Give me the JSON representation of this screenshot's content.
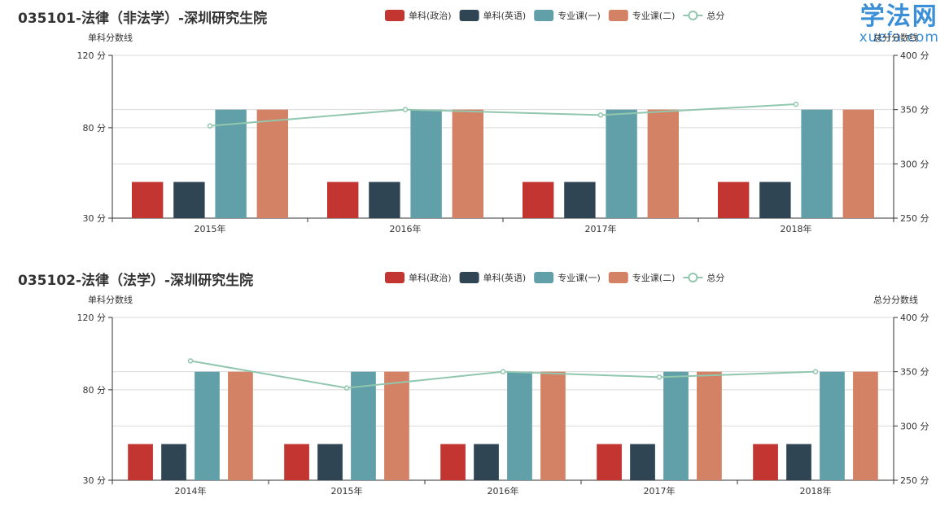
{
  "watermark": {
    "main": "学法网",
    "sub": "xuefa.com"
  },
  "chart_data": [
    {
      "type": "bar",
      "title": "035101-法律（非法学）-深圳研究生院",
      "categories": [
        "2015年",
        "2016年",
        "2017年",
        "2018年"
      ],
      "series": [
        {
          "name": "单科(政治)",
          "type": "bar",
          "axis": "left",
          "color": "#c23531",
          "values": [
            50,
            50,
            50,
            50
          ]
        },
        {
          "name": "单科(英语)",
          "type": "bar",
          "axis": "left",
          "color": "#2f4554",
          "values": [
            50,
            50,
            50,
            50
          ]
        },
        {
          "name": "专业课(一)",
          "type": "bar",
          "axis": "left",
          "color": "#61a0a8",
          "values": [
            90,
            90,
            90,
            90
          ]
        },
        {
          "name": "专业课(二)",
          "type": "bar",
          "axis": "left",
          "color": "#d48265",
          "values": [
            90,
            90,
            90,
            90
          ]
        },
        {
          "name": "总分",
          "type": "line",
          "axis": "right",
          "color": "#91c7ae",
          "values": [
            335,
            350,
            345,
            355
          ]
        }
      ],
      "ylabel_left": "单科分数线",
      "ylabel_right": "总分分数线",
      "ylim_left": [
        30,
        120
      ],
      "yticks_left": [
        30,
        80,
        120
      ],
      "ylim_right": [
        250,
        400
      ],
      "yticks_right": [
        250,
        300,
        350,
        400
      ],
      "tick_suffix": " 分",
      "grid": true,
      "legend_position": "top"
    },
    {
      "type": "bar",
      "title": "035102-法律（法学）-深圳研究生院",
      "categories": [
        "2014年",
        "2015年",
        "2016年",
        "2017年",
        "2018年"
      ],
      "series": [
        {
          "name": "单科(政治)",
          "type": "bar",
          "axis": "left",
          "color": "#c23531",
          "values": [
            50,
            50,
            50,
            50,
            50
          ]
        },
        {
          "name": "单科(英语)",
          "type": "bar",
          "axis": "left",
          "color": "#2f4554",
          "values": [
            50,
            50,
            50,
            50,
            50
          ]
        },
        {
          "name": "专业课(一)",
          "type": "bar",
          "axis": "left",
          "color": "#61a0a8",
          "values": [
            90,
            90,
            90,
            90,
            90
          ]
        },
        {
          "name": "专业课(二)",
          "type": "bar",
          "axis": "left",
          "color": "#d48265",
          "values": [
            90,
            90,
            90,
            90,
            90
          ]
        },
        {
          "name": "总分",
          "type": "line",
          "axis": "right",
          "color": "#91c7ae",
          "values": [
            360,
            335,
            350,
            345,
            350
          ]
        }
      ],
      "ylabel_left": "单科分数线",
      "ylabel_right": "总分分数线",
      "ylim_left": [
        30,
        120
      ],
      "yticks_left": [
        30,
        80,
        120
      ],
      "ylim_right": [
        250,
        400
      ],
      "yticks_right": [
        250,
        300,
        350,
        400
      ],
      "tick_suffix": " 分",
      "grid": true,
      "legend_position": "top"
    }
  ]
}
